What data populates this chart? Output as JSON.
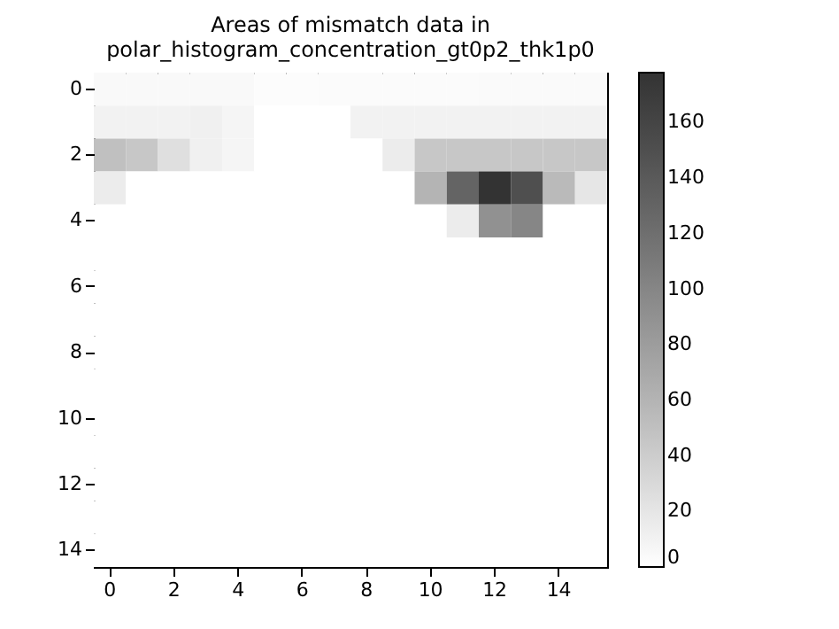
{
  "chart_data": {
    "type": "heatmap",
    "title": "Areas of mismatch data in\npolar_histogram_concentration_gt0p2_thk1p0",
    "categories": [
      "0",
      null,
      "2",
      null,
      "4",
      null,
      "6",
      null,
      "8",
      null,
      "10",
      null,
      "12",
      null,
      "14",
      null
    ],
    "y_categories": [
      "0",
      null,
      "2",
      null,
      "4",
      null,
      "6",
      null,
      "8",
      null,
      "10",
      null,
      "12",
      null,
      "14"
    ],
    "cells": [
      [
        5,
        5,
        5,
        5,
        5,
        2,
        2,
        3,
        3,
        3,
        3,
        3,
        4,
        4,
        4,
        4
      ],
      [
        10,
        10,
        10,
        12,
        8,
        0,
        0,
        0,
        10,
        10,
        10,
        10,
        10,
        10,
        10,
        10
      ],
      [
        50,
        45,
        25,
        12,
        8,
        0,
        0,
        0,
        0,
        15,
        45,
        45,
        45,
        45,
        45,
        45
      ],
      [
        15,
        0,
        0,
        0,
        0,
        0,
        0,
        0,
        0,
        0,
        60,
        130,
        178,
        150,
        55,
        20
      ],
      [
        0,
        0,
        0,
        0,
        0,
        0,
        0,
        0,
        0,
        0,
        0,
        15,
        90,
        100,
        0,
        0
      ],
      [
        0,
        0,
        0,
        0,
        0,
        0,
        0,
        0,
        0,
        0,
        0,
        0,
        0,
        0,
        0,
        0
      ],
      [
        0,
        0,
        0,
        0,
        0,
        0,
        0,
        0,
        0,
        0,
        0,
        0,
        0,
        0,
        0,
        0
      ],
      [
        0,
        0,
        0,
        0,
        0,
        0,
        0,
        0,
        0,
        0,
        0,
        0,
        0,
        0,
        0,
        0
      ],
      [
        0,
        0,
        0,
        0,
        0,
        0,
        0,
        0,
        0,
        0,
        0,
        0,
        0,
        0,
        0,
        0
      ],
      [
        0,
        0,
        0,
        0,
        0,
        0,
        0,
        0,
        0,
        0,
        0,
        0,
        0,
        0,
        0,
        0
      ],
      [
        0,
        0,
        0,
        0,
        0,
        0,
        0,
        0,
        0,
        0,
        0,
        0,
        0,
        0,
        0,
        0
      ],
      [
        0,
        0,
        0,
        0,
        0,
        0,
        0,
        0,
        0,
        0,
        0,
        0,
        0,
        0,
        0,
        0
      ],
      [
        0,
        0,
        0,
        0,
        0,
        0,
        0,
        0,
        0,
        0,
        0,
        0,
        0,
        0,
        0,
        0
      ],
      [
        0,
        0,
        0,
        0,
        0,
        0,
        0,
        0,
        0,
        0,
        0,
        0,
        0,
        0,
        0,
        0
      ],
      [
        0,
        0,
        0,
        0,
        0,
        0,
        0,
        0,
        0,
        0,
        0,
        0,
        0,
        0,
        0,
        0
      ]
    ],
    "clim": [
      0,
      178
    ],
    "cticks": [
      0,
      20,
      40,
      60,
      80,
      100,
      120,
      140,
      160
    ]
  }
}
